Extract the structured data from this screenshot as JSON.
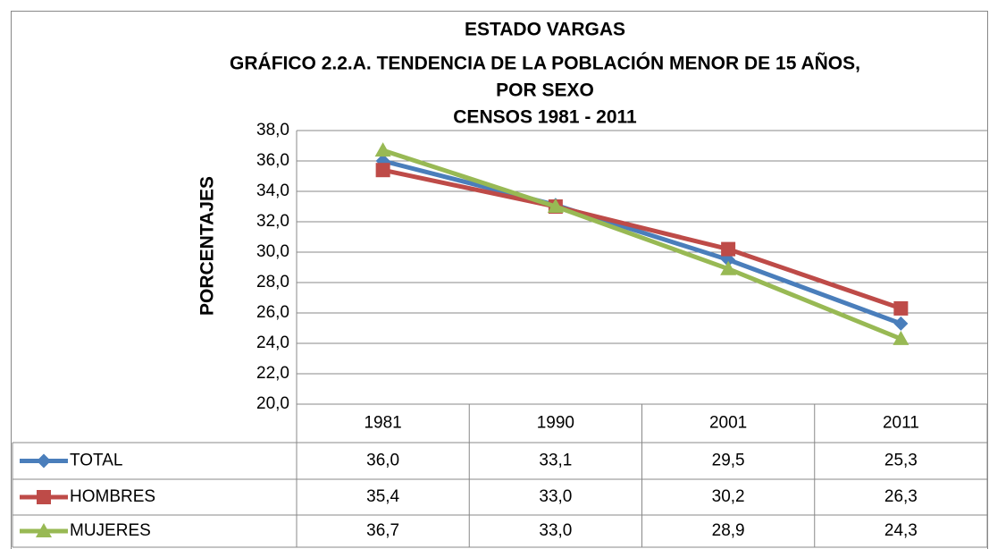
{
  "chart_data": {
    "type": "line",
    "title": [
      "ESTADO VARGAS",
      "GRÁFICO 2.2.A. TENDENCIA DE LA POBLACIÓN MENOR DE 15 AÑOS,",
      "POR SEXO",
      "CENSOS 1981  - 2011"
    ],
    "y_label": "PORCENTAJES",
    "categories": [
      "1981",
      "1990",
      "2001",
      "2011"
    ],
    "series": [
      {
        "name": "TOTAL",
        "color": "#4a7ebb",
        "marker": "diamond",
        "values": [
          36.0,
          33.1,
          29.5,
          25.3
        ],
        "value_labels": [
          "36,0",
          "33,1",
          "29,5",
          "25,3"
        ]
      },
      {
        "name": "HOMBRES",
        "color": "#be4b48",
        "marker": "square",
        "values": [
          35.4,
          33.0,
          30.2,
          26.3
        ],
        "value_labels": [
          "35,4",
          "33,0",
          "30,2",
          "26,3"
        ]
      },
      {
        "name": "MUJERES",
        "color": "#98b954",
        "marker": "triangle",
        "values": [
          36.7,
          33.0,
          28.9,
          24.3
        ],
        "value_labels": [
          "36,7",
          "33,0",
          "28,9",
          "24,3"
        ]
      }
    ],
    "ylim": [
      20,
      38
    ],
    "yticks": [
      {
        "value": 20,
        "label": "20,0"
      },
      {
        "value": 22,
        "label": "22,0"
      },
      {
        "value": 24,
        "label": "24,0"
      },
      {
        "value": 26,
        "label": "26,0"
      },
      {
        "value": 28,
        "label": "28,0"
      },
      {
        "value": 30,
        "label": "30,0"
      },
      {
        "value": 32,
        "label": "32,0"
      },
      {
        "value": 34,
        "label": "34,0"
      },
      {
        "value": 36,
        "label": "36,0"
      },
      {
        "value": 38,
        "label": "38,0"
      }
    ],
    "grid": true
  }
}
